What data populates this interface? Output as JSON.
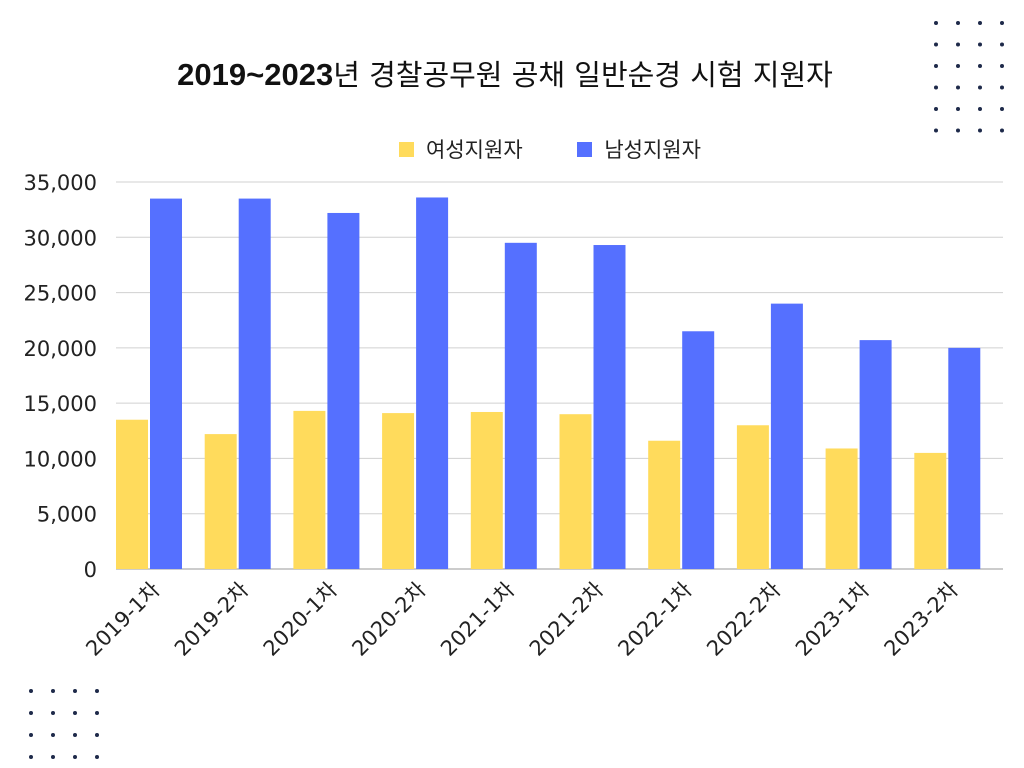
{
  "title": {
    "year_part": "2019~2023",
    "rest": "년 경찰공무원 공채 일반순경 시험 지원자"
  },
  "colors": {
    "female": "#FFDB5C",
    "male": "#5570FF",
    "grid": "#D0D0D0",
    "dots": "#1E2A4A"
  },
  "chart_data": {
    "type": "bar",
    "title": "2019~2023년 경찰공무원 공채 일반순경 시험 지원자",
    "categories": [
      "2019-1차",
      "2019-2차",
      "2020-1차",
      "2020-2차",
      "2021-1차",
      "2021-2차",
      "2022-1차",
      "2022-2차",
      "2023-1차",
      "2023-2차"
    ],
    "series": [
      {
        "name": "여성지원자",
        "values": [
          13500,
          12200,
          14300,
          14100,
          14200,
          14000,
          11600,
          13000,
          10900,
          10500
        ]
      },
      {
        "name": "남성지원자",
        "values": [
          33500,
          33500,
          32200,
          33600,
          29500,
          29300,
          21500,
          24000,
          20700,
          20000
        ]
      }
    ],
    "ylim": [
      0,
      35000
    ],
    "yticks": [
      "0",
      "5,000",
      "10,000",
      "15,000",
      "20,000",
      "25,000",
      "30,000",
      "35,000"
    ],
    "xlabel": "",
    "ylabel": "",
    "grid": true,
    "legend": "top-center"
  }
}
